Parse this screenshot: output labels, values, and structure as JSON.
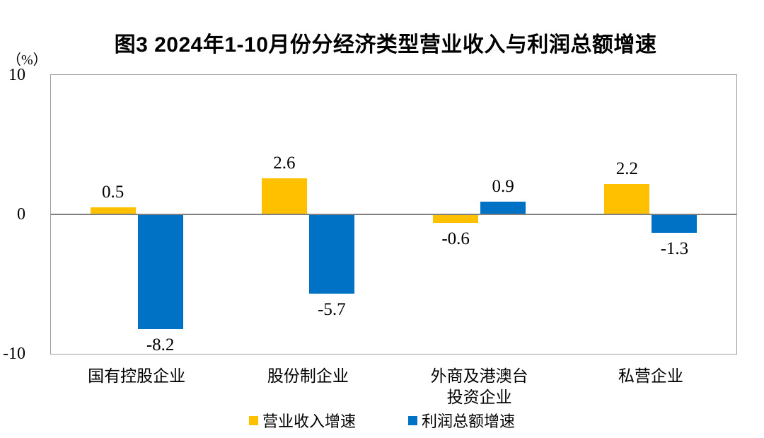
{
  "figure": {
    "title": "图3  2024年1-10月份分经济类型营业收入与利润总额增速",
    "unit_label": "（%）"
  },
  "chart_data": {
    "type": "bar",
    "categories": [
      "国有控股企业",
      "股份制企业",
      "外商及港澳台\n投资企业",
      "私营企业"
    ],
    "series": [
      {
        "name": "营业收入增速",
        "color": "#FFC000",
        "values": [
          0.5,
          2.6,
          -0.6,
          2.2
        ]
      },
      {
        "name": "利润总额增速",
        "color": "#0072C6",
        "values": [
          -8.2,
          -5.7,
          0.9,
          -1.3
        ]
      }
    ],
    "ylabel": "（%）",
    "ylim": [
      -10,
      10
    ],
    "yticks": [
      10,
      0,
      -10
    ],
    "grid": false,
    "legend_position": "bottom",
    "value_labels": true
  }
}
